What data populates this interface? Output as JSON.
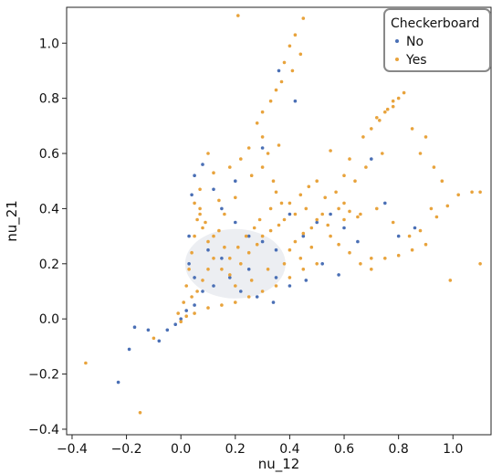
{
  "chart_data": {
    "type": "scatter",
    "title": "",
    "xlabel": "nu_12",
    "ylabel": "nu_21",
    "xlim": [
      -0.42,
      1.14
    ],
    "ylim": [
      -0.42,
      1.13
    ],
    "x_ticks": [
      -0.4,
      -0.2,
      0.0,
      0.2,
      0.4,
      0.6,
      0.8,
      1.0
    ],
    "x_tick_labels": [
      "−0.4",
      "−0.2",
      "0.0",
      "0.2",
      "0.4",
      "0.6",
      "0.8",
      "1.0"
    ],
    "y_ticks": [
      -0.4,
      -0.2,
      0.0,
      0.2,
      0.4,
      0.6,
      0.8,
      1.0
    ],
    "y_tick_labels": [
      "−0.4",
      "−0.2",
      "0.0",
      "0.2",
      "0.4",
      "0.6",
      "0.8",
      "1.0"
    ],
    "grid": false,
    "legend": {
      "title": "Checkerboard",
      "placement": "top-right",
      "entries": [
        "No",
        "Yes"
      ]
    },
    "series": [
      {
        "name": "No",
        "color": "#4a6fb5",
        "points": [
          [
            -0.23,
            -0.23
          ],
          [
            -0.19,
            -0.11
          ],
          [
            -0.17,
            -0.03
          ],
          [
            -0.12,
            -0.04
          ],
          [
            -0.08,
            -0.08
          ],
          [
            -0.05,
            -0.04
          ],
          [
            -0.02,
            -0.02
          ],
          [
            0.0,
            0.0
          ],
          [
            0.02,
            0.03
          ],
          [
            0.05,
            0.05
          ],
          [
            0.03,
            0.3
          ],
          [
            0.04,
            0.45
          ],
          [
            0.05,
            0.52
          ],
          [
            0.08,
            0.56
          ],
          [
            0.12,
            0.47
          ],
          [
            0.15,
            0.4
          ],
          [
            0.2,
            0.35
          ],
          [
            0.25,
            0.3
          ],
          [
            0.3,
            0.28
          ],
          [
            0.35,
            0.25
          ],
          [
            0.4,
            0.38
          ],
          [
            0.45,
            0.3
          ],
          [
            0.5,
            0.35
          ],
          [
            0.55,
            0.38
          ],
          [
            0.6,
            0.33
          ],
          [
            0.7,
            0.58
          ],
          [
            0.75,
            0.42
          ],
          [
            0.36,
            0.9
          ],
          [
            0.42,
            0.79
          ],
          [
            0.3,
            0.62
          ],
          [
            0.08,
            0.1
          ],
          [
            0.12,
            0.12
          ],
          [
            0.18,
            0.15
          ],
          [
            0.22,
            0.1
          ],
          [
            0.28,
            0.08
          ],
          [
            0.34,
            0.06
          ],
          [
            0.4,
            0.12
          ],
          [
            0.46,
            0.14
          ],
          [
            0.52,
            0.2
          ],
          [
            0.58,
            0.16
          ],
          [
            0.65,
            0.28
          ],
          [
            0.8,
            0.3
          ],
          [
            0.86,
            0.33
          ],
          [
            0.1,
            0.25
          ],
          [
            0.15,
            0.22
          ],
          [
            0.25,
            0.18
          ],
          [
            0.35,
            0.15
          ],
          [
            0.05,
            0.15
          ],
          [
            0.03,
            0.2
          ],
          [
            0.2,
            0.5
          ]
        ]
      },
      {
        "name": "Yes",
        "color": "#e8a33c",
        "points": [
          [
            -0.35,
            -0.16
          ],
          [
            -0.15,
            -0.34
          ],
          [
            -0.1,
            -0.07
          ],
          [
            0.21,
            1.1
          ],
          [
            0.45,
            1.09
          ],
          [
            0.42,
            1.03
          ],
          [
            0.4,
            0.99
          ],
          [
            0.44,
            0.96
          ],
          [
            0.38,
            0.93
          ],
          [
            0.41,
            0.9
          ],
          [
            0.37,
            0.86
          ],
          [
            0.35,
            0.83
          ],
          [
            0.33,
            0.79
          ],
          [
            0.3,
            0.75
          ],
          [
            0.28,
            0.71
          ],
          [
            0.3,
            0.66
          ],
          [
            0.25,
            0.62
          ],
          [
            0.32,
            0.6
          ],
          [
            0.36,
            0.63
          ],
          [
            0.22,
            0.58
          ],
          [
            0.18,
            0.55
          ],
          [
            0.12,
            0.53
          ],
          [
            0.1,
            0.6
          ],
          [
            0.07,
            0.47
          ],
          [
            0.14,
            0.43
          ],
          [
            0.55,
            0.61
          ],
          [
            0.6,
            0.52
          ],
          [
            0.62,
            0.58
          ],
          [
            0.67,
            0.66
          ],
          [
            0.7,
            0.69
          ],
          [
            0.73,
            0.72
          ],
          [
            0.76,
            0.76
          ],
          [
            0.78,
            0.79
          ],
          [
            0.8,
            0.8
          ],
          [
            0.72,
            0.73
          ],
          [
            0.75,
            0.75
          ],
          [
            0.78,
            0.77
          ],
          [
            0.82,
            0.82
          ],
          [
            0.85,
            0.69
          ],
          [
            0.9,
            0.66
          ],
          [
            0.88,
            0.6
          ],
          [
            0.93,
            0.55
          ],
          [
            0.96,
            0.5
          ],
          [
            1.02,
            0.45
          ],
          [
            1.07,
            0.46
          ],
          [
            1.1,
            0.46
          ],
          [
            0.98,
            0.41
          ],
          [
            0.94,
            0.37
          ],
          [
            1.1,
            0.2
          ],
          [
            0.99,
            0.14
          ],
          [
            0.9,
            0.27
          ],
          [
            0.85,
            0.25
          ],
          [
            0.8,
            0.23
          ],
          [
            0.75,
            0.22
          ],
          [
            0.7,
            0.22
          ],
          [
            0.65,
            0.37
          ],
          [
            0.62,
            0.39
          ],
          [
            0.6,
            0.42
          ],
          [
            0.58,
            0.4
          ],
          [
            0.52,
            0.38
          ],
          [
            0.5,
            0.36
          ],
          [
            0.48,
            0.33
          ],
          [
            0.45,
            0.31
          ],
          [
            0.42,
            0.28
          ],
          [
            0.4,
            0.25
          ],
          [
            0.55,
            0.3
          ],
          [
            0.58,
            0.27
          ],
          [
            0.62,
            0.24
          ],
          [
            0.66,
            0.2
          ],
          [
            0.7,
            0.18
          ],
          [
            0.5,
            0.2
          ],
          [
            0.45,
            0.18
          ],
          [
            0.4,
            0.15
          ],
          [
            0.35,
            0.12
          ],
          [
            0.3,
            0.1
          ],
          [
            0.25,
            0.08
          ],
          [
            0.2,
            0.06
          ],
          [
            0.15,
            0.05
          ],
          [
            0.1,
            0.04
          ],
          [
            0.05,
            0.02
          ],
          [
            0.02,
            0.01
          ],
          [
            0.0,
            -0.01
          ],
          [
            -0.01,
            0.02
          ],
          [
            0.01,
            0.06
          ],
          [
            0.02,
            0.12
          ],
          [
            0.03,
            0.18
          ],
          [
            0.04,
            0.24
          ],
          [
            0.05,
            0.3
          ],
          [
            0.06,
            0.36
          ],
          [
            0.07,
            0.4
          ],
          [
            0.08,
            0.33
          ],
          [
            0.1,
            0.28
          ],
          [
            0.12,
            0.22
          ],
          [
            0.15,
            0.18
          ],
          [
            0.18,
            0.16
          ],
          [
            0.22,
            0.2
          ],
          [
            0.25,
            0.24
          ],
          [
            0.28,
            0.27
          ],
          [
            0.3,
            0.3
          ],
          [
            0.33,
            0.32
          ],
          [
            0.36,
            0.34
          ],
          [
            0.38,
            0.36
          ],
          [
            0.4,
            0.42
          ],
          [
            0.44,
            0.45
          ],
          [
            0.47,
            0.48
          ],
          [
            0.5,
            0.5
          ],
          [
            0.34,
            0.5
          ],
          [
            0.3,
            0.55
          ],
          [
            0.26,
            0.52
          ],
          [
            0.2,
            0.44
          ],
          [
            0.16,
            0.38
          ],
          [
            0.14,
            0.32
          ],
          [
            0.1,
            0.18
          ],
          [
            0.08,
            0.14
          ],
          [
            0.06,
            0.1
          ],
          [
            0.04,
            0.08
          ],
          [
            0.2,
            0.12
          ],
          [
            0.26,
            0.14
          ],
          [
            0.32,
            0.18
          ],
          [
            0.38,
            0.2
          ],
          [
            0.44,
            0.22
          ],
          [
            0.48,
            0.26
          ],
          [
            0.54,
            0.34
          ],
          [
            0.6,
            0.36
          ],
          [
            0.66,
            0.38
          ],
          [
            0.72,
            0.4
          ],
          [
            0.78,
            0.35
          ],
          [
            0.84,
            0.3
          ],
          [
            0.88,
            0.32
          ],
          [
            0.92,
            0.4
          ],
          [
            0.74,
            0.6
          ],
          [
            0.68,
            0.55
          ],
          [
            0.64,
            0.5
          ],
          [
            0.57,
            0.46
          ],
          [
            0.53,
            0.44
          ],
          [
            0.46,
            0.4
          ],
          [
            0.42,
            0.38
          ],
          [
            0.37,
            0.42
          ],
          [
            0.35,
            0.46
          ],
          [
            0.33,
            0.4
          ],
          [
            0.29,
            0.36
          ],
          [
            0.27,
            0.33
          ],
          [
            0.24,
            0.3
          ],
          [
            0.21,
            0.26
          ],
          [
            0.18,
            0.22
          ],
          [
            0.16,
            0.26
          ],
          [
            0.12,
            0.3
          ],
          [
            0.09,
            0.35
          ],
          [
            0.07,
            0.38
          ],
          [
            0.05,
            0.42
          ]
        ]
      }
    ]
  }
}
